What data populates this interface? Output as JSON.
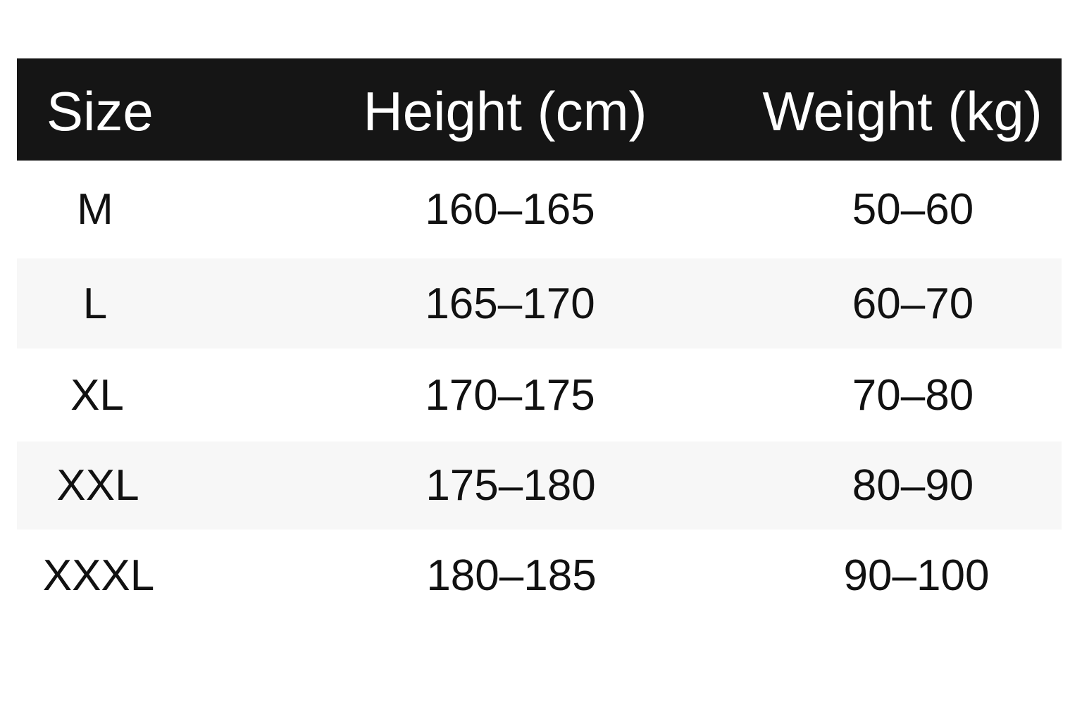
{
  "table": {
    "headers": [
      "Size",
      "Height (cm)",
      "Weight (kg)"
    ],
    "rows": [
      {
        "size": "M",
        "height": "160–165",
        "weight": "50–60"
      },
      {
        "size": "L",
        "height": "165–170",
        "weight": "60–70"
      },
      {
        "size": "XL",
        "height": "170–175",
        "weight": "70–80"
      },
      {
        "size": "XXL",
        "height": "175–180",
        "weight": "80–90"
      },
      {
        "size": "XXXL",
        "height": "180–185",
        "weight": "90–100"
      }
    ],
    "colors": {
      "header_bg": "#151515",
      "header_text": "#ffffff",
      "stripe": "#f7f7f7",
      "text": "#111111"
    }
  }
}
